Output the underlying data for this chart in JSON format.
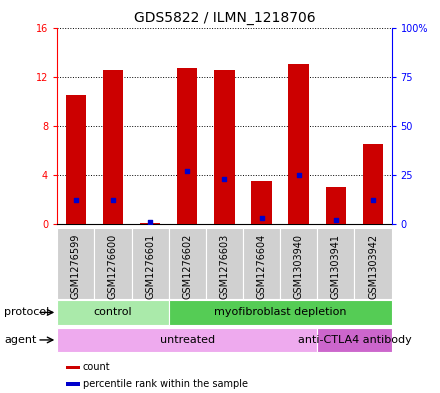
{
  "title": "GDS5822 / ILMN_1218706",
  "samples": [
    "GSM1276599",
    "GSM1276600",
    "GSM1276601",
    "GSM1276602",
    "GSM1276603",
    "GSM1276604",
    "GSM1303940",
    "GSM1303941",
    "GSM1303942"
  ],
  "counts": [
    10.5,
    12.5,
    0.1,
    12.7,
    12.5,
    3.5,
    13.0,
    3.0,
    6.5
  ],
  "percentiles": [
    12,
    12,
    1,
    27,
    23,
    3,
    25,
    2,
    12
  ],
  "ylim_left": [
    0,
    16
  ],
  "ylim_right": [
    0,
    100
  ],
  "yticks_left": [
    0,
    4,
    8,
    12,
    16
  ],
  "yticks_right": [
    0,
    25,
    50,
    75,
    100
  ],
  "ytick_labels_right": [
    "0",
    "25",
    "50",
    "75",
    "100%"
  ],
  "bar_color": "#cc0000",
  "percentile_color": "#0000cc",
  "sample_bg_color": "#d0d0d0",
  "protocol_groups": [
    {
      "label": "control",
      "start": 0,
      "end": 3,
      "color": "#aaeaaa"
    },
    {
      "label": "myofibroblast depletion",
      "start": 3,
      "end": 9,
      "color": "#55cc55"
    }
  ],
  "agent_groups": [
    {
      "label": "untreated",
      "start": 0,
      "end": 7,
      "color": "#eeaaee"
    },
    {
      "label": "anti-CTLA4 antibody",
      "start": 7,
      "end": 9,
      "color": "#cc66cc"
    }
  ],
  "legend_items": [
    {
      "color": "#cc0000",
      "label": "count"
    },
    {
      "color": "#0000cc",
      "label": "percentile rank within the sample"
    }
  ],
  "title_fontsize": 10,
  "tick_fontsize": 7,
  "label_fontsize": 8,
  "ann_fontsize": 8
}
